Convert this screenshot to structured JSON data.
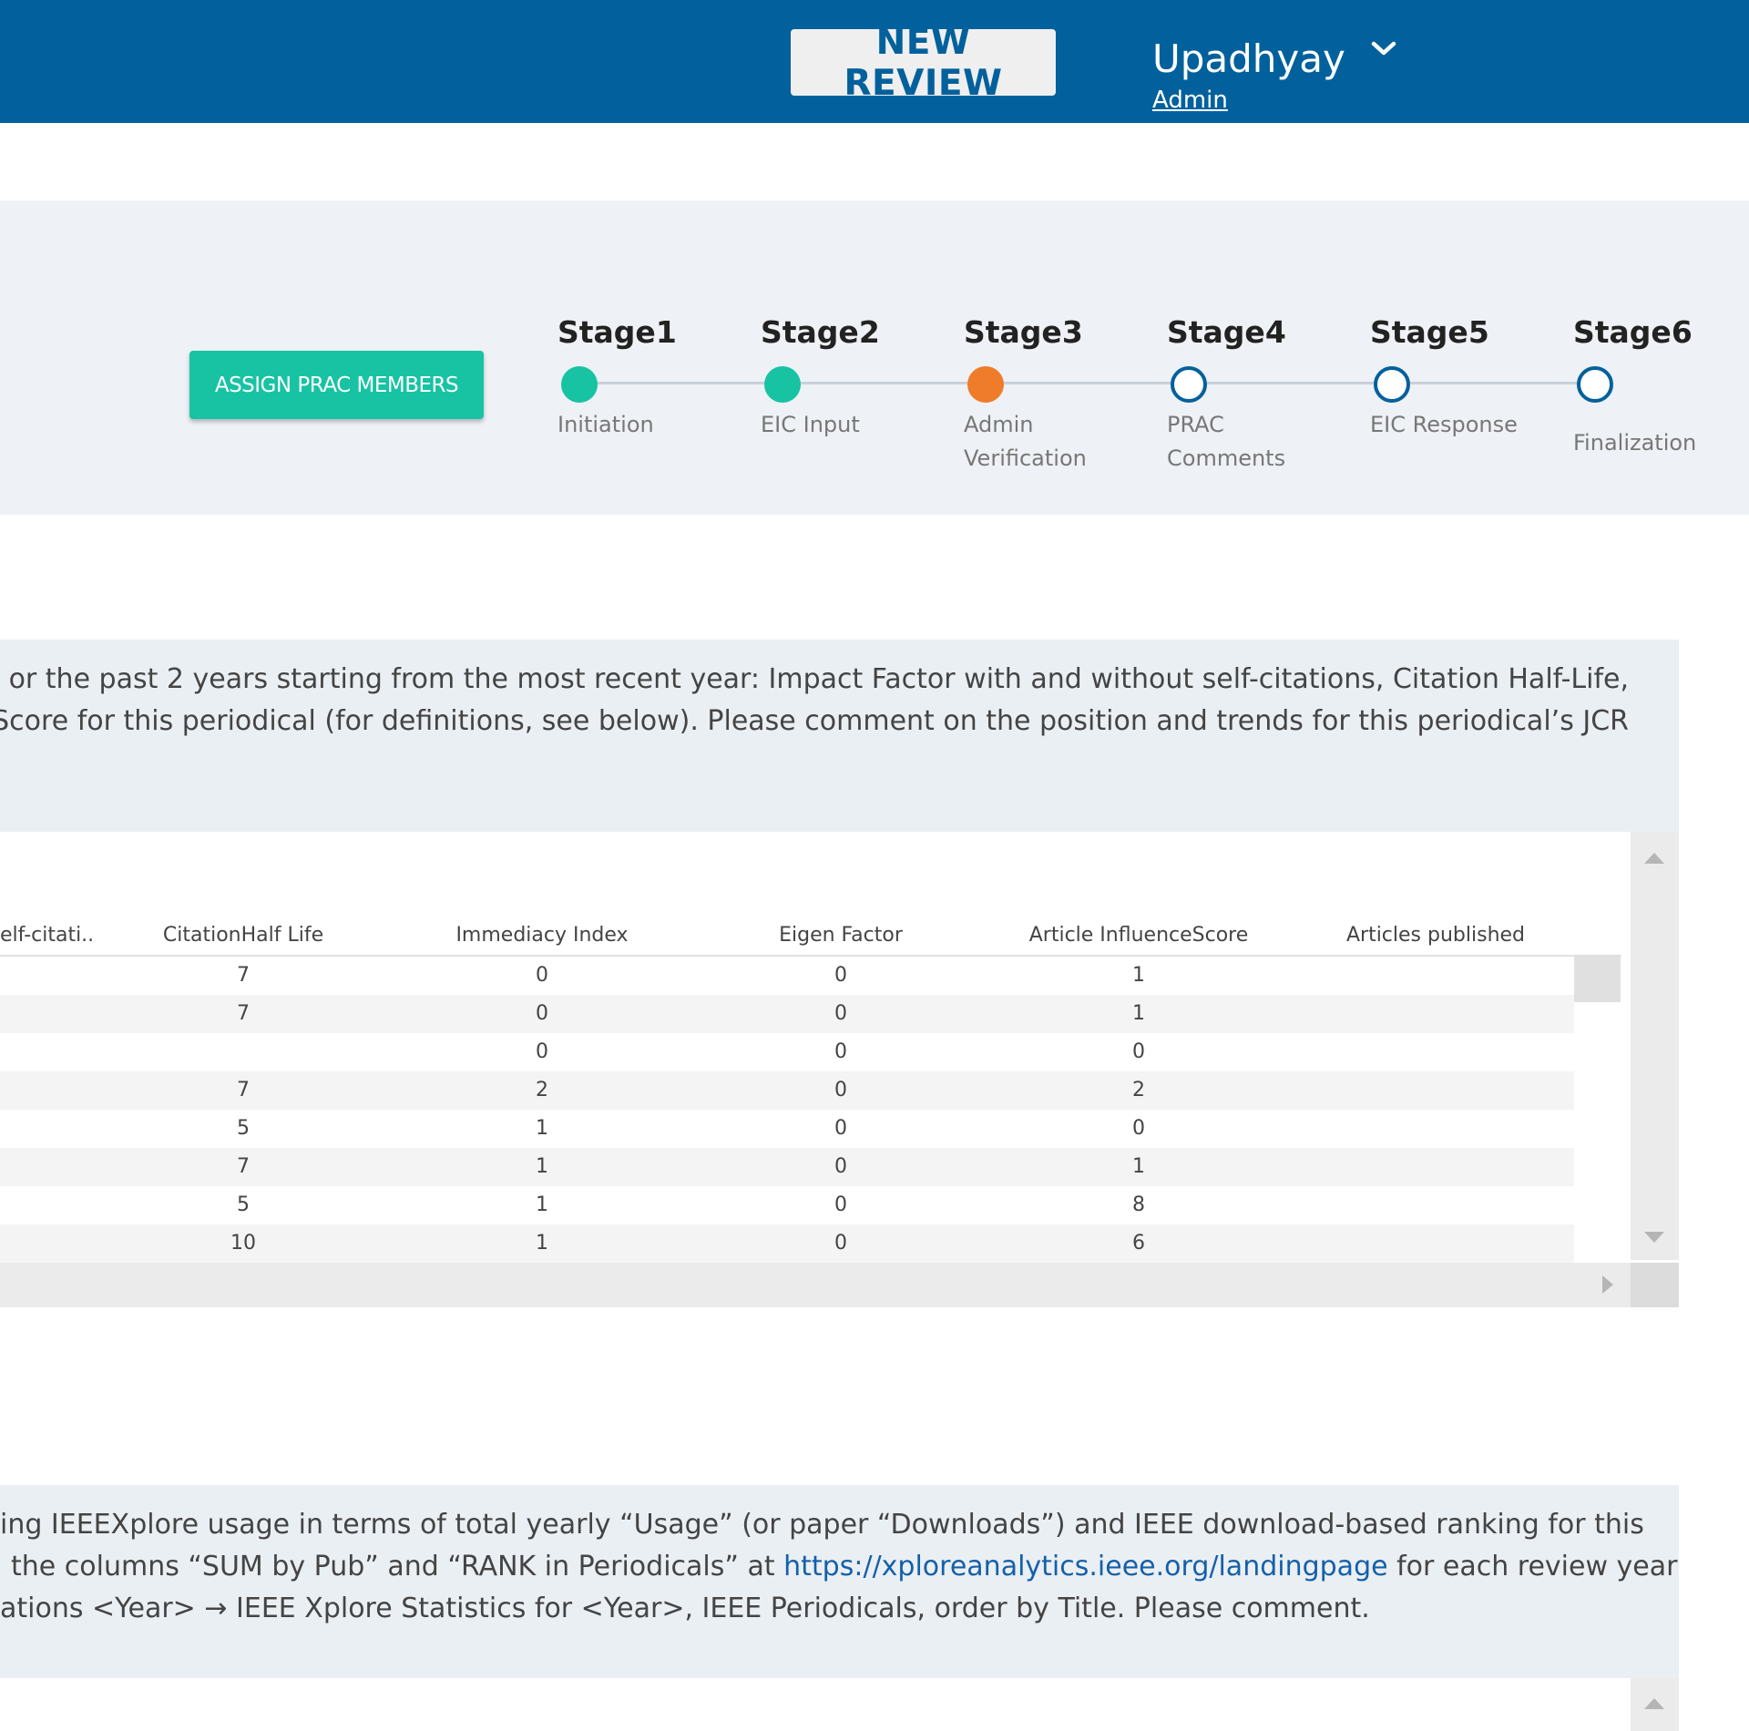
{
  "header": {
    "new_review_label": "NEW REVIEW",
    "user_name": "Upadhyay",
    "user_role": "Admin"
  },
  "stages_panel": {
    "assign_button_label": "ASSIGN PRAC MEMBERS",
    "stages": [
      {
        "title": "Stage1",
        "sub": [
          "Initiation"
        ],
        "status": "done"
      },
      {
        "title": "Stage2",
        "sub": [
          "EIC Input"
        ],
        "status": "done"
      },
      {
        "title": "Stage3",
        "sub": [
          "Admin",
          "Verification"
        ],
        "status": "current"
      },
      {
        "title": "Stage4",
        "sub": [
          "PRAC",
          "Comments"
        ],
        "status": "todo"
      },
      {
        "title": "Stage5",
        "sub": [
          "EIC Response"
        ],
        "status": "todo"
      },
      {
        "title": "Stage6",
        "sub": [
          "Finalization"
        ],
        "status": "todo"
      }
    ],
    "colors": {
      "done": "#17c3a2",
      "current": "#ef7c2a",
      "todo": "#02619c"
    }
  },
  "question1": {
    "line1": "or the past 2 years starting from the most recent year: Impact Factor with and without self-citations, Citation Half-Life,",
    "line2": "ce Score for this periodical (for definitions, see below). Please comment on the position and trends for this periodical’s JCR"
  },
  "jcr_table": {
    "columns": [
      "elf-citati..",
      "CitationHalf Life",
      "Immediacy Index",
      "Eigen Factor",
      "Article InfluenceScore",
      "Articles published"
    ],
    "rows": [
      [
        "",
        "7",
        "0",
        "0",
        "1",
        ""
      ],
      [
        "",
        "7",
        "0",
        "0",
        "1",
        ""
      ],
      [
        "",
        "",
        "0",
        "0",
        "0",
        ""
      ],
      [
        "",
        "7",
        "2",
        "0",
        "2",
        ""
      ],
      [
        "",
        "5",
        "1",
        "0",
        "0",
        ""
      ],
      [
        "",
        "7",
        "1",
        "0",
        "1",
        ""
      ],
      [
        "",
        "5",
        "1",
        "0",
        "8",
        ""
      ],
      [
        "",
        "10",
        "1",
        "0",
        "6",
        ""
      ]
    ]
  },
  "question2": {
    "line1": "ing IEEEXplore usage in terms of total yearly “Usage” (or paper “Downloads”) and IEEE download-based ranking for this",
    "line2_prefix": "the columns “SUM by Pub” and “RANK in Periodicals” at ",
    "line2_link": "https://xploreanalytics.ieee.org/landingpage",
    "line2_suffix": " for each review year",
    "line3": "ations <Year> → IEEE Xplore Statistics for  <Year>, IEEE Periodicals, order by Title.  Please comment."
  }
}
